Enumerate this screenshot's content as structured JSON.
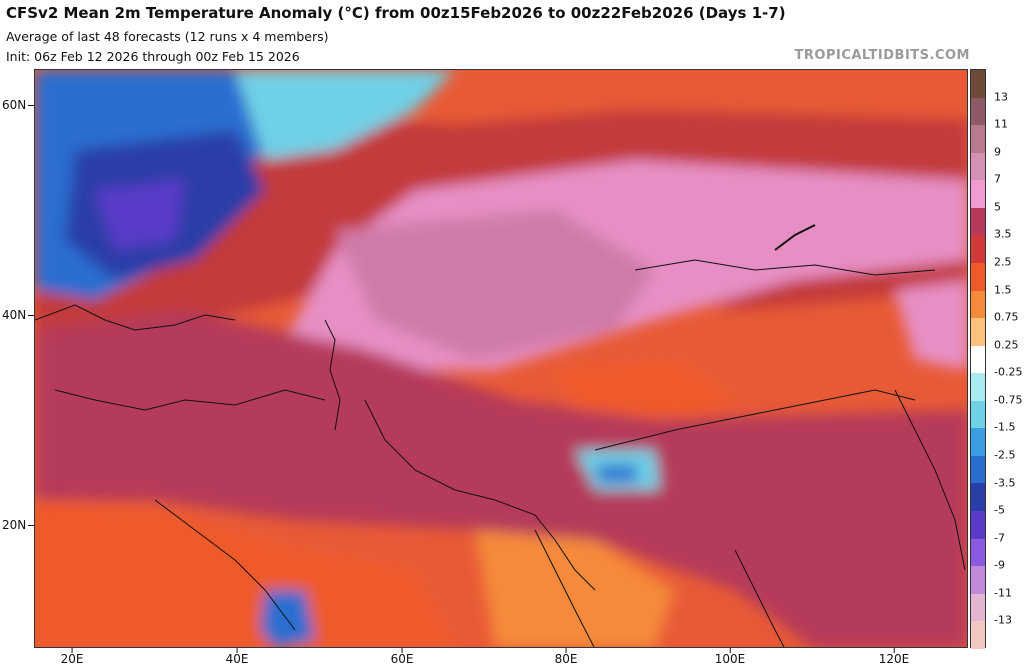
{
  "header": {
    "title": "CFSv2 Mean 2m Temperature Anomaly (°C) from 00z15Feb2026 to 00z22Feb2026 (Days 1-7)",
    "line2": "Average of last 48 forecasts (12 runs x 4 members)",
    "line3": "Init: 06z Feb 12 2026 through 00z Feb 15 2026"
  },
  "watermark": "TROPICALTIDBITS.COM",
  "axes": {
    "lat_labels": [
      "60N",
      "40N",
      "20N"
    ],
    "lon_labels": [
      "20E",
      "40E",
      "60E",
      "80E",
      "100E",
      "120E"
    ]
  },
  "colorbar": {
    "labels": [
      "13",
      "11",
      "9",
      "7",
      "5",
      "3.5",
      "2.5",
      "1.5",
      "0.75",
      "0.25",
      "-0.25",
      "-0.75",
      "-1.5",
      "-2.5",
      "-3.5",
      "-5",
      "-7",
      "-9",
      "-11",
      "-13"
    ],
    "colors": [
      "#6e4a3a",
      "#8e5a66",
      "#b77a8e",
      "#d392b3",
      "#f29ad2",
      "#b73a5c",
      "#d23a3a",
      "#ef5a2c",
      "#f58a3a",
      "#fbc27e",
      "#ffffff",
      "#a8eaf0",
      "#6fd0e6",
      "#3a9ee0",
      "#2a6ed0",
      "#2a3ea8",
      "#5a3ac8",
      "#8a5ae0",
      "#c08ad8",
      "#e2b6d0",
      "#f0c8c0"
    ]
  },
  "colors": {
    "background": "#ffffff",
    "frame": "#333333"
  }
}
